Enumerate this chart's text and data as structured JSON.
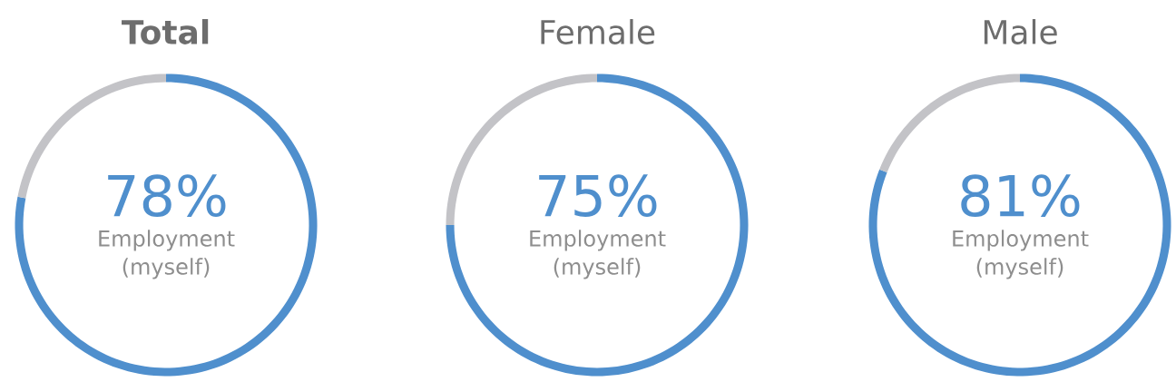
{
  "chart_data": [
    {
      "type": "donut",
      "title": "**Total**",
      "categories": [
        "Employment (myself)",
        null
      ],
      "values": [
        78,
        22
      ],
      "colors": [
        "#4f8fcd",
        "#c3c3c7"
      ],
      "value_labels": [
        "78%",
        null
      ]
    },
    {
      "type": "donut",
      "title": "Female",
      "categories": [
        "Employment (myself)",
        null
      ],
      "values": [
        75,
        25
      ],
      "colors": [
        "#4f8fcd",
        "#c3c3c7"
      ],
      "value_labels": [
        "75%",
        null
      ]
    },
    {
      "type": "donut",
      "title": "Male",
      "categories": [
        "Employment (myself)",
        null
      ],
      "values": [
        81,
        19
      ],
      "colors": [
        "#4f8fcd",
        "#c3c3c7"
      ],
      "value_labels": [
        "81%",
        null
      ]
    }
  ]
}
